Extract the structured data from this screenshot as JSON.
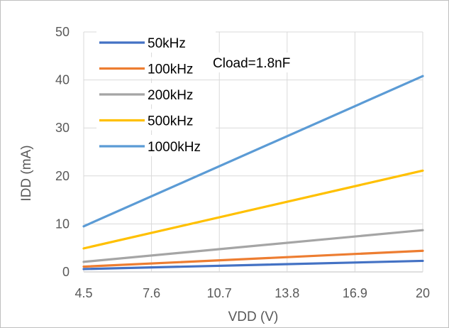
{
  "chart_data": {
    "type": "line",
    "title": "",
    "xlabel": "VDD (V)",
    "ylabel": "IDD (mA)",
    "x": [
      4.5,
      20
    ],
    "xticks": [
      "4.5",
      "7.6",
      "10.7",
      "13.8",
      "16.9",
      "20"
    ],
    "xtick_values": [
      4.5,
      7.6,
      10.7,
      13.8,
      16.9,
      20
    ],
    "yticks": [
      "0",
      "10",
      "20",
      "30",
      "40",
      "50"
    ],
    "ytick_values": [
      0,
      10,
      20,
      30,
      40,
      50
    ],
    "xlim": [
      4.5,
      20
    ],
    "ylim": [
      0,
      50
    ],
    "grid": true,
    "legend_position": "top-left",
    "annotation": "Cload=1.8nF",
    "series": [
      {
        "name": "50kHz",
        "color": "#4472C4",
        "values": [
          0.6,
          2.3
        ]
      },
      {
        "name": "100kHz",
        "color": "#ED7D31",
        "values": [
          1.1,
          4.4
        ]
      },
      {
        "name": "200kHz",
        "color": "#A5A5A5",
        "values": [
          2.1,
          8.7
        ]
      },
      {
        "name": "500kHz",
        "color": "#FFC000",
        "values": [
          4.9,
          21.1
        ]
      },
      {
        "name": "1000kHz",
        "color": "#5B9BD5",
        "values": [
          9.5,
          40.8
        ]
      }
    ]
  }
}
